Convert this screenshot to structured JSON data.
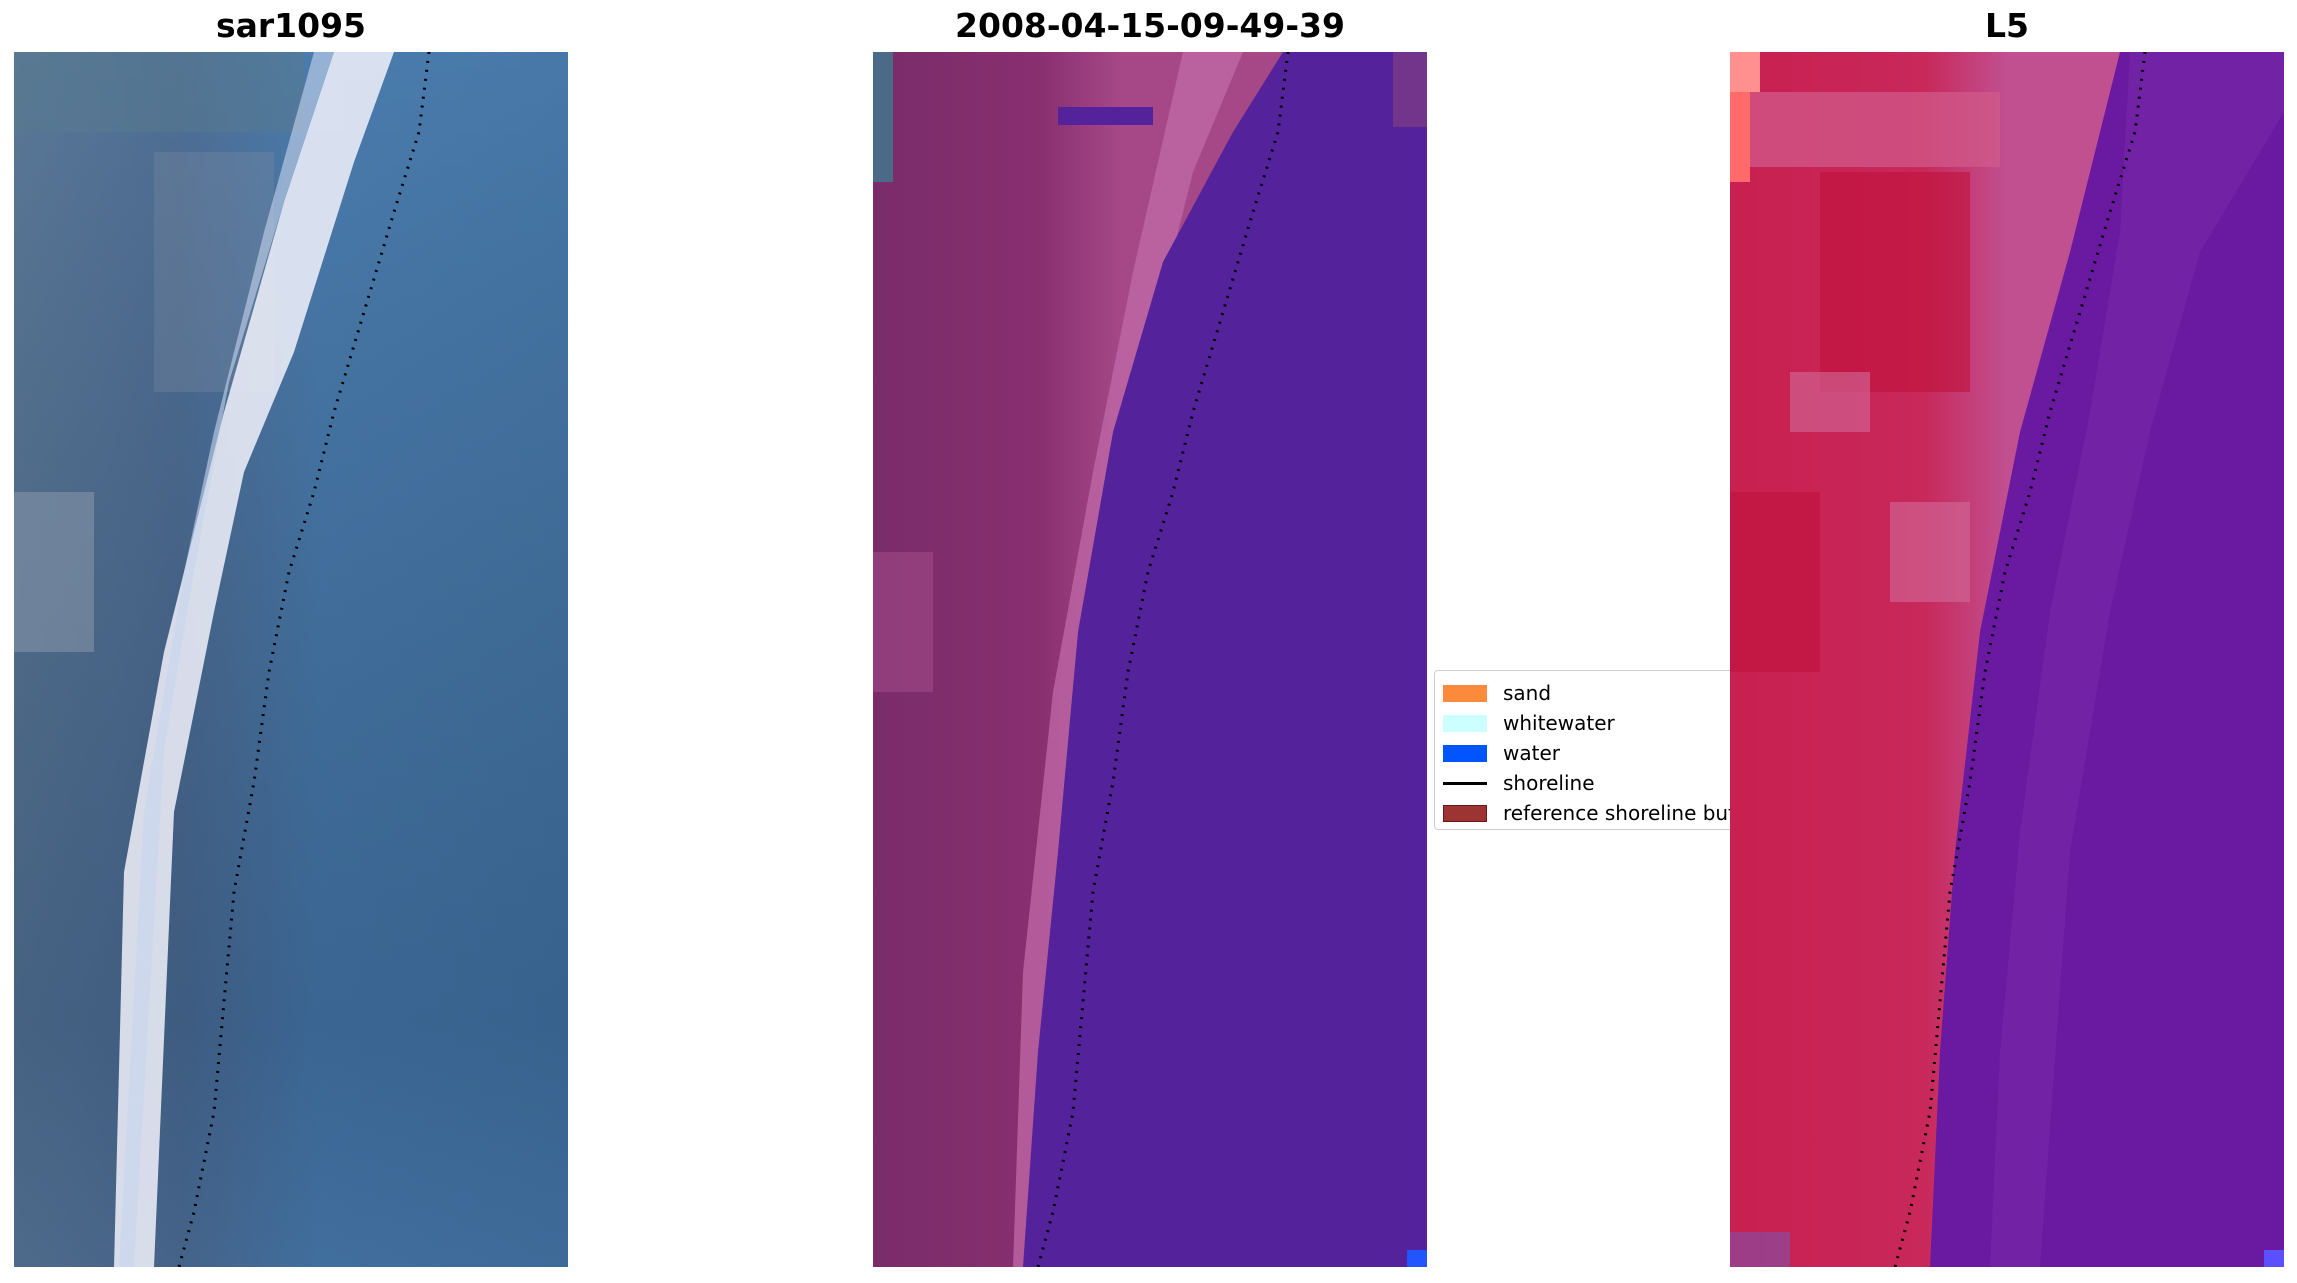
{
  "panels": [
    {
      "title": "sar1095"
    },
    {
      "title": "2008-04-15-09-49-39"
    },
    {
      "title": "L5"
    }
  ],
  "legend": {
    "items": [
      {
        "label": "sand",
        "color": "#fb8a3d",
        "kind": "patch"
      },
      {
        "label": "whitewater",
        "color": "#ccffff",
        "kind": "patch"
      },
      {
        "label": "water",
        "color": "#0055ff",
        "kind": "patch"
      },
      {
        "label": "shoreline",
        "color": "#000000",
        "kind": "line"
      },
      {
        "label": "reference shoreline buffer",
        "color": "#9c3434",
        "kind": "patch"
      }
    ]
  },
  "colors": {
    "rgb_water": "#3f6fa0",
    "rgb_land": "#5a7aa0",
    "classified_land": "#7a2a68",
    "classified_beach": "#b85a98",
    "classified_water": "#54229a",
    "mndwi_land": "#c8184a",
    "mndwi_water": "#6a1aa0"
  }
}
